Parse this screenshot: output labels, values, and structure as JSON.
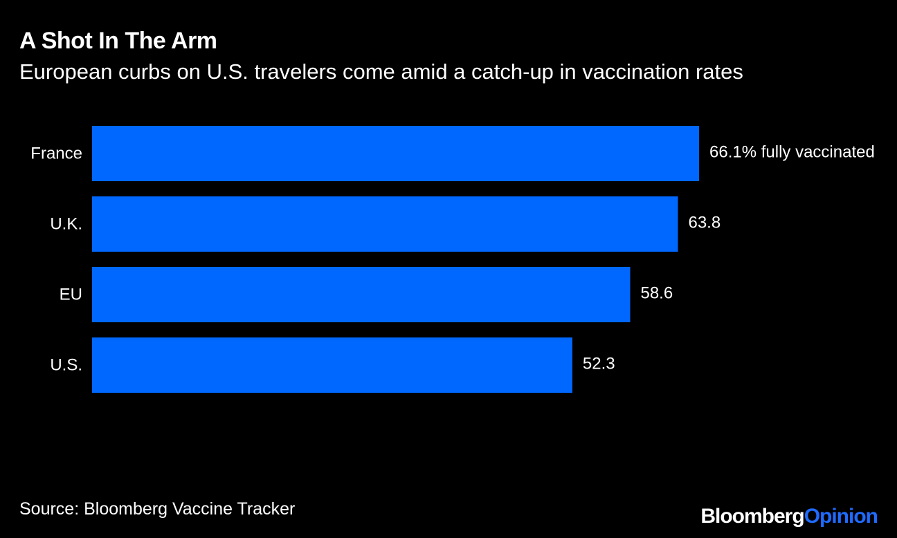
{
  "chart_data": {
    "type": "bar",
    "orientation": "horizontal",
    "title": "A Shot In The Arm",
    "subtitle": "European curbs on U.S. travelers come amid a catch-up in vaccination rates",
    "categories": [
      "France",
      "U.K.",
      "EU",
      "U.S."
    ],
    "values": [
      66.1,
      63.8,
      58.6,
      52.3
    ],
    "data_labels": [
      "66.1% fully vaccinated",
      "63.8",
      "58.6",
      "52.3"
    ],
    "xlim": [
      0,
      66.1
    ],
    "grid": false,
    "legend": "none",
    "bar_color": "#0068ff"
  },
  "source": "Source: Bloomberg Vaccine Tracker",
  "brand": {
    "part1": "Bloomberg",
    "part2": "Opinion",
    "part2_color": "#1f6bff"
  },
  "colors": {
    "background": "#000000",
    "text": "#ffffff",
    "bar": "#0068ff"
  }
}
